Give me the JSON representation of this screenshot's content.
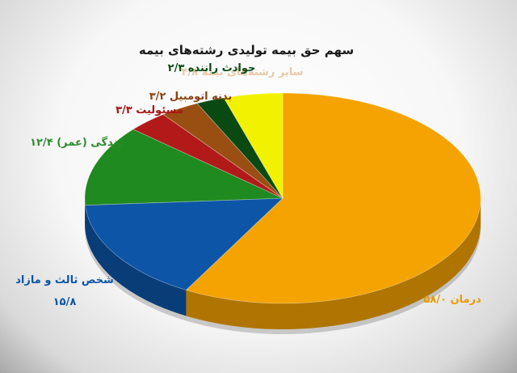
{
  "chart_data": {
    "type": "pie",
    "title": "سهم حق بیمه  تولیدی رشته‌های بیمه",
    "slices": [
      {
        "name": "درمان",
        "value_label": "۵۸/۰",
        "value": 58.0,
        "color": "#f4a300"
      },
      {
        "name": "شخص ثالث و مازاد",
        "value_label": "۱۵/۸",
        "value": 15.8,
        "color": "#0d55a6"
      },
      {
        "name": "زندگی (عمر)",
        "value_label": "۱۲/۴",
        "value": 12.4,
        "color": "#1f8a1f"
      },
      {
        "name": "مسئولیت",
        "value_label": "۳/۳",
        "value": 3.3,
        "color": "#b21a1a"
      },
      {
        "name": "بدنه اتومبیل",
        "value_label": "۳/۲",
        "value": 3.2,
        "color": "#9a4f12"
      },
      {
        "name": "حوادث راننده",
        "value_label": "۲/۳",
        "value": 2.3,
        "color": "#0a4a12"
      },
      {
        "name": "سایر رشته‌های بیمه",
        "value_label": "۴/۸",
        "value": 4.8,
        "color": "#f2f200"
      }
    ],
    "labels": [
      {
        "text": "سایر رشته‌های بیمه ۴/۸",
        "color": "#e8c9a6"
      },
      {
        "text": "حوادث راننده ۲/۳",
        "color": "#0a4a12"
      },
      {
        "text": "بدنه اتومبیل ۳/۲",
        "color": "#8a4210"
      },
      {
        "text": "مسئولیت ۳/۳",
        "color": "#a81515"
      },
      {
        "text": "زندگی (عمر) ۱۲/۴",
        "color": "#2d8a2d"
      },
      {
        "text": "شخص ثالث و مازاد",
        "color": "#0d55a6"
      },
      {
        "text": "۱۵/۸",
        "color": "#0d55a6"
      },
      {
        "text": "درمان ۵۸/۰",
        "color": "#e89a00"
      }
    ]
  }
}
